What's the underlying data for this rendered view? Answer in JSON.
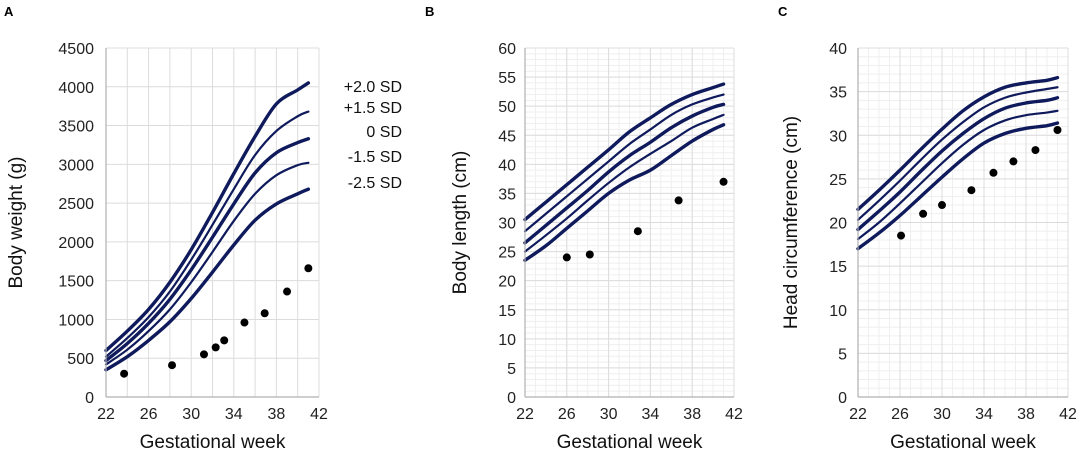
{
  "colors": {
    "curve": "#0f1a5c",
    "grid_major": "#dcdcdc",
    "grid_minor": "#efefef",
    "point": "#000000",
    "axis": "#b0b0b0"
  },
  "chart_data": [
    {
      "panel": "A",
      "type": "line",
      "xlabel": "Gestational week",
      "ylabel": "Body weight (g)",
      "xlim": [
        22,
        42
      ],
      "ylim": [
        0,
        4500
      ],
      "xticks": [
        22,
        26,
        30,
        34,
        38,
        42
      ],
      "yticks": [
        0,
        500,
        1000,
        1500,
        2000,
        2500,
        3000,
        3500,
        4000,
        4500
      ],
      "minor_grid": false,
      "x": [
        22,
        24,
        26,
        28,
        30,
        32,
        34,
        36,
        38,
        40,
        41
      ],
      "series": [
        {
          "name": "+2.0 SD",
          "values": [
            600,
            850,
            1130,
            1480,
            1900,
            2380,
            2880,
            3360,
            3780,
            3960,
            4050
          ],
          "bold": true
        },
        {
          "name": "+1.5 SD",
          "values": [
            520,
            760,
            1030,
            1360,
            1770,
            2220,
            2680,
            3120,
            3430,
            3620,
            3680
          ],
          "bold": false
        },
        {
          "name": "0 SD",
          "values": [
            470,
            690,
            950,
            1260,
            1640,
            2060,
            2490,
            2890,
            3150,
            3280,
            3330
          ],
          "bold": true
        },
        {
          "name": "-1.5 SD",
          "values": [
            420,
            610,
            850,
            1130,
            1480,
            1870,
            2270,
            2620,
            2860,
            2990,
            3020
          ],
          "bold": false
        },
        {
          "name": "-2.5 SD",
          "values": [
            350,
            520,
            730,
            970,
            1270,
            1610,
            1960,
            2280,
            2490,
            2620,
            2680
          ],
          "bold": true
        }
      ],
      "points": [
        [
          23.7,
          300
        ],
        [
          28.2,
          410
        ],
        [
          31.2,
          550
        ],
        [
          32.3,
          640
        ],
        [
          33.1,
          730
        ],
        [
          35.0,
          960
        ],
        [
          36.9,
          1080
        ],
        [
          39.0,
          1360
        ],
        [
          41.0,
          1660
        ]
      ],
      "sd_labels": [
        "+2.0 SD",
        "+1.5 SD",
        "0 SD",
        "-1.5 SD",
        "-2.5 SD"
      ]
    },
    {
      "panel": "B",
      "type": "line",
      "xlabel": "Gestational week",
      "ylabel": "Body length (cm)",
      "xlim": [
        22,
        42
      ],
      "ylim": [
        0,
        60
      ],
      "xticks": [
        22,
        26,
        30,
        34,
        38,
        42
      ],
      "yticks": [
        0,
        5,
        10,
        15,
        20,
        25,
        30,
        35,
        40,
        45,
        50,
        55,
        60
      ],
      "minor_grid": true,
      "x": [
        22,
        24,
        26,
        28,
        30,
        32,
        34,
        36,
        38,
        40,
        41
      ],
      "series": [
        {
          "name": "+2.0 SD",
          "values": [
            30.5,
            33.5,
            36.5,
            39.5,
            42.5,
            45.6,
            48.0,
            50.3,
            52.0,
            53.2,
            53.8
          ],
          "bold": true
        },
        {
          "name": "+1.5 SD",
          "values": [
            28.5,
            31.5,
            34.5,
            37.5,
            40.5,
            43.5,
            46.0,
            48.5,
            50.3,
            51.5,
            52.0
          ],
          "bold": false
        },
        {
          "name": "0 SD",
          "values": [
            26.5,
            29.5,
            32.5,
            35.5,
            38.7,
            41.5,
            43.8,
            46.3,
            48.3,
            49.8,
            50.3
          ],
          "bold": true
        },
        {
          "name": "-1.5 SD",
          "values": [
            25.0,
            27.8,
            30.7,
            33.8,
            36.8,
            39.5,
            41.8,
            44.0,
            46.3,
            47.8,
            48.5
          ],
          "bold": false
        },
        {
          "name": "-2.5 SD",
          "values": [
            23.5,
            26.0,
            29.0,
            32.0,
            35.0,
            37.3,
            39.0,
            41.5,
            44.0,
            46.0,
            46.8
          ],
          "bold": true
        }
      ],
      "points": [
        [
          26.0,
          24.0
        ],
        [
          28.2,
          24.5
        ],
        [
          32.8,
          28.5
        ],
        [
          36.7,
          33.8
        ],
        [
          41.0,
          37.0
        ]
      ]
    },
    {
      "panel": "C",
      "type": "line",
      "xlabel": "Gestational week",
      "ylabel": "Head circumference (cm)",
      "xlim": [
        22,
        42
      ],
      "ylim": [
        0,
        40
      ],
      "xticks": [
        22,
        26,
        30,
        34,
        38,
        42
      ],
      "yticks": [
        0,
        5,
        10,
        15,
        20,
        25,
        30,
        35,
        40
      ],
      "minor_grid": true,
      "x": [
        22,
        24,
        26,
        28,
        30,
        32,
        34,
        36,
        38,
        40,
        41
      ],
      "series": [
        {
          "name": "+2.0 SD",
          "values": [
            21.5,
            23.7,
            26.0,
            28.4,
            30.7,
            32.8,
            34.4,
            35.5,
            36.0,
            36.3,
            36.6
          ],
          "bold": true
        },
        {
          "name": "+1.5 SD",
          "values": [
            20.3,
            22.5,
            24.8,
            27.2,
            29.5,
            31.5,
            33.2,
            34.3,
            34.9,
            35.3,
            35.5
          ],
          "bold": false
        },
        {
          "name": "0 SD",
          "values": [
            19.2,
            21.3,
            23.5,
            25.9,
            28.2,
            30.2,
            31.9,
            33.1,
            33.7,
            34.0,
            34.3
          ],
          "bold": true
        },
        {
          "name": "-1.5 SD",
          "values": [
            18.1,
            20.0,
            22.2,
            24.5,
            26.8,
            28.9,
            30.6,
            31.7,
            32.3,
            32.6,
            32.8
          ],
          "bold": false
        },
        {
          "name": "-2.5 SD",
          "values": [
            17.0,
            18.8,
            20.8,
            23.0,
            25.2,
            27.3,
            29.1,
            30.2,
            30.8,
            31.1,
            31.4
          ],
          "bold": true
        }
      ],
      "points": [
        [
          26.1,
          18.5
        ],
        [
          28.2,
          21.0
        ],
        [
          30.0,
          22.0
        ],
        [
          32.8,
          23.7
        ],
        [
          34.9,
          25.7
        ],
        [
          36.8,
          27.0
        ],
        [
          38.9,
          28.3
        ],
        [
          41.0,
          30.6
        ]
      ]
    }
  ]
}
